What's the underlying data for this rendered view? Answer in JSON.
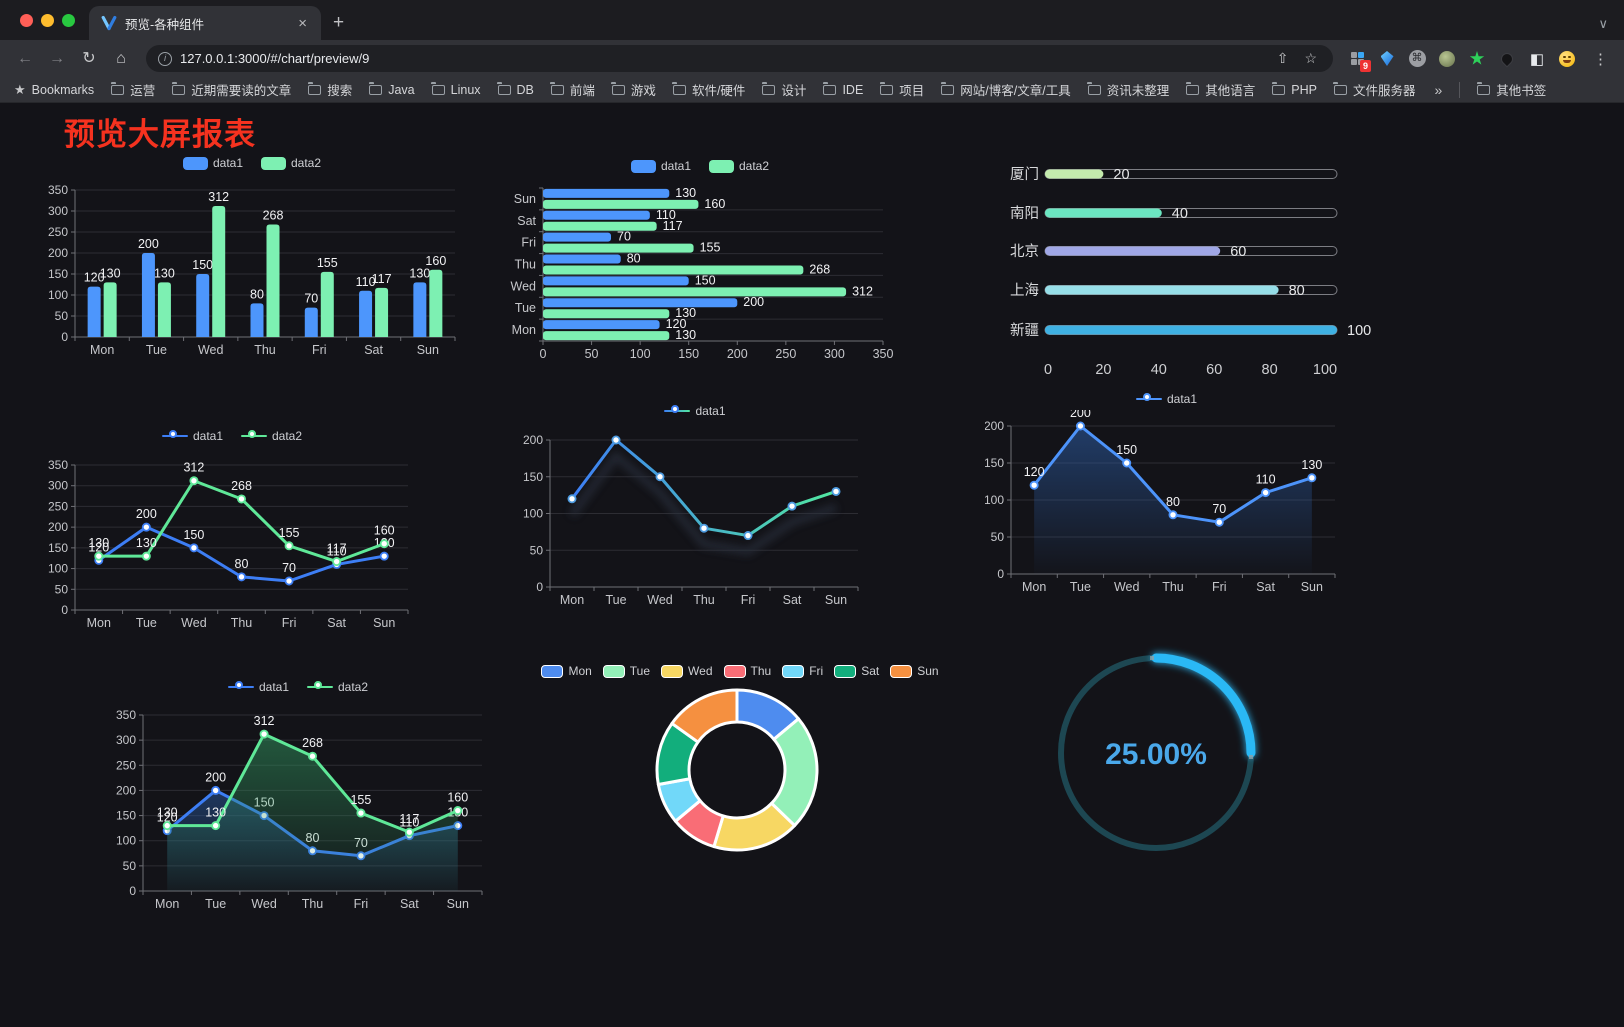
{
  "browser": {
    "tab_title": "预览-各种组件",
    "url": "127.0.0.1:3000/#/chart/preview/9",
    "bookmarks_label": "Bookmarks",
    "bookmarks": [
      "运营",
      "近期需要读的文章",
      "搜索",
      "Java",
      "Linux",
      "DB",
      "前端",
      "游戏",
      "软件/硬件",
      "设计",
      "IDE",
      "项目",
      "网站/博客/文章/工具",
      "资讯未整理",
      "其他语言",
      "PHP",
      "文件服务器"
    ],
    "other_bookmarks_label": "其他书签",
    "extension_badge": "9",
    "icons": {
      "back": "←",
      "forward": "→",
      "reload": "↻",
      "home": "⌂",
      "share": "⇧",
      "star": "☆",
      "menu": "⋮",
      "new_tab": "+",
      "tab_close": "×",
      "chevron_down": "∨",
      "overflow": "»",
      "half_square": "◧",
      "command": "⌘",
      "info": "i"
    }
  },
  "page": {
    "title": "预览大屏报表",
    "title_color": "#f5321f"
  },
  "chart_data": [
    {
      "id": "bar-vertical",
      "type": "bar",
      "categories": [
        "Mon",
        "Tue",
        "Wed",
        "Thu",
        "Fri",
        "Sat",
        "Sun"
      ],
      "series": [
        {
          "name": "data1",
          "color": "#4d96fc",
          "values": [
            120,
            200,
            150,
            80,
            70,
            110,
            130
          ]
        },
        {
          "name": "data2",
          "color": "#7df0b2",
          "values": [
            130,
            130,
            312,
            268,
            155,
            117,
            160
          ]
        }
      ],
      "ylim": [
        0,
        350
      ],
      "yticks": [
        0,
        50,
        100,
        150,
        200,
        250,
        300,
        350
      ],
      "grid": true,
      "legend_position": "top",
      "value_labels": true
    },
    {
      "id": "bar-horizontal",
      "type": "hbar",
      "categories_top_to_bottom": [
        "Sun",
        "Sat",
        "Fri",
        "Thu",
        "Wed",
        "Tue",
        "Mon"
      ],
      "series": [
        {
          "name": "data1",
          "color": "#4d96fc",
          "values": [
            130,
            110,
            70,
            80,
            150,
            200,
            120
          ]
        },
        {
          "name": "data2",
          "color": "#7df0b2",
          "values": [
            160,
            117,
            155,
            268,
            312,
            130,
            130
          ]
        }
      ],
      "xlim": [
        0,
        350
      ],
      "xticks": [
        0,
        50,
        100,
        150,
        200,
        250,
        300,
        350
      ],
      "grid": true,
      "legend_position": "top",
      "value_labels": true
    },
    {
      "id": "progress-bars",
      "type": "progress",
      "items": [
        {
          "label": "厦门",
          "value": 20,
          "color": "#c4ebad"
        },
        {
          "label": "南阳",
          "value": 40,
          "color": "#6be6c1"
        },
        {
          "label": "北京",
          "value": 60,
          "color": "#a0a7e6"
        },
        {
          "label": "上海",
          "value": 80,
          "color": "#96dee8"
        },
        {
          "label": "新疆",
          "value": 100,
          "color": "#3fb1e3"
        }
      ],
      "xlim": [
        0,
        100
      ],
      "xticks": [
        0,
        20,
        40,
        60,
        80,
        100
      ]
    },
    {
      "id": "line-two-series",
      "type": "line",
      "categories": [
        "Mon",
        "Tue",
        "Wed",
        "Thu",
        "Fri",
        "Sat",
        "Sun"
      ],
      "series": [
        {
          "name": "data1",
          "color": "#3d7ef5",
          "values": [
            120,
            200,
            150,
            80,
            70,
            110,
            130
          ]
        },
        {
          "name": "data2",
          "color": "#5fe898",
          "values": [
            130,
            130,
            312,
            268,
            155,
            117,
            160
          ]
        }
      ],
      "ylim": [
        0,
        350
      ],
      "yticks": [
        0,
        50,
        100,
        150,
        200,
        250,
        300,
        350
      ],
      "grid": true,
      "legend_position": "top",
      "value_labels": true
    },
    {
      "id": "line-gradient",
      "type": "line",
      "categories": [
        "Mon",
        "Tue",
        "Wed",
        "Thu",
        "Fri",
        "Sat",
        "Sun"
      ],
      "series": [
        {
          "name": "data1",
          "gradient": [
            "#3d7ef5",
            "#52e8a0"
          ],
          "values": [
            120,
            200,
            150,
            80,
            70,
            110,
            130
          ],
          "shadow": true
        }
      ],
      "ylim": [
        0,
        200
      ],
      "yticks": [
        0,
        50,
        100,
        150,
        200
      ],
      "grid": true,
      "legend_position": "top",
      "value_labels": false
    },
    {
      "id": "area-single",
      "type": "area",
      "categories": [
        "Mon",
        "Tue",
        "Wed",
        "Thu",
        "Fri",
        "Sat",
        "Sun"
      ],
      "series": [
        {
          "name": "data1",
          "color": "#4d94fb",
          "fill": [
            "rgba(45,95,170,0.55)",
            "rgba(45,95,170,0.02)"
          ],
          "values": [
            120,
            200,
            150,
            80,
            70,
            110,
            130
          ]
        }
      ],
      "ylim": [
        0,
        200
      ],
      "yticks": [
        0,
        50,
        100,
        150,
        200
      ],
      "grid": true,
      "legend_position": "top",
      "value_labels": true
    },
    {
      "id": "area-two-series",
      "type": "area",
      "categories": [
        "Mon",
        "Tue",
        "Wed",
        "Thu",
        "Fri",
        "Sat",
        "Sun"
      ],
      "series": [
        {
          "name": "data1",
          "color": "#3d7ef5",
          "fill": [
            "rgba(42,92,165,0.50)",
            "rgba(42,92,165,0.04)"
          ],
          "values": [
            120,
            200,
            150,
            80,
            70,
            110,
            130
          ]
        },
        {
          "name": "data2",
          "color": "#5fe898",
          "fill": [
            "rgba(48,145,92,0.55)",
            "rgba(48,145,92,0.04)"
          ],
          "values": [
            130,
            130,
            312,
            268,
            155,
            117,
            160
          ]
        }
      ],
      "ylim": [
        0,
        350
      ],
      "yticks": [
        0,
        50,
        100,
        150,
        200,
        250,
        300,
        350
      ],
      "grid": true,
      "legend_position": "top",
      "value_labels": true
    },
    {
      "id": "donut",
      "type": "donut",
      "items": [
        {
          "label": "Mon",
          "value": 120,
          "color": "#4e8cef"
        },
        {
          "label": "Tue",
          "value": 200,
          "color": "#93f0b8"
        },
        {
          "label": "Wed",
          "value": 150,
          "color": "#f7d763"
        },
        {
          "label": "Thu",
          "value": 80,
          "color": "#f96d76"
        },
        {
          "label": "Fri",
          "value": 70,
          "color": "#71d8f9"
        },
        {
          "label": "Sat",
          "value": 110,
          "color": "#12ae7c"
        },
        {
          "label": "Sun",
          "value": 130,
          "color": "#f59040"
        }
      ],
      "legend_position": "top"
    },
    {
      "id": "gauge",
      "type": "gauge",
      "value": 25,
      "display": "25.00%",
      "color": "#2ab8f5",
      "track_color": "#1d4752",
      "text_color": "#4aa8ea"
    }
  ]
}
